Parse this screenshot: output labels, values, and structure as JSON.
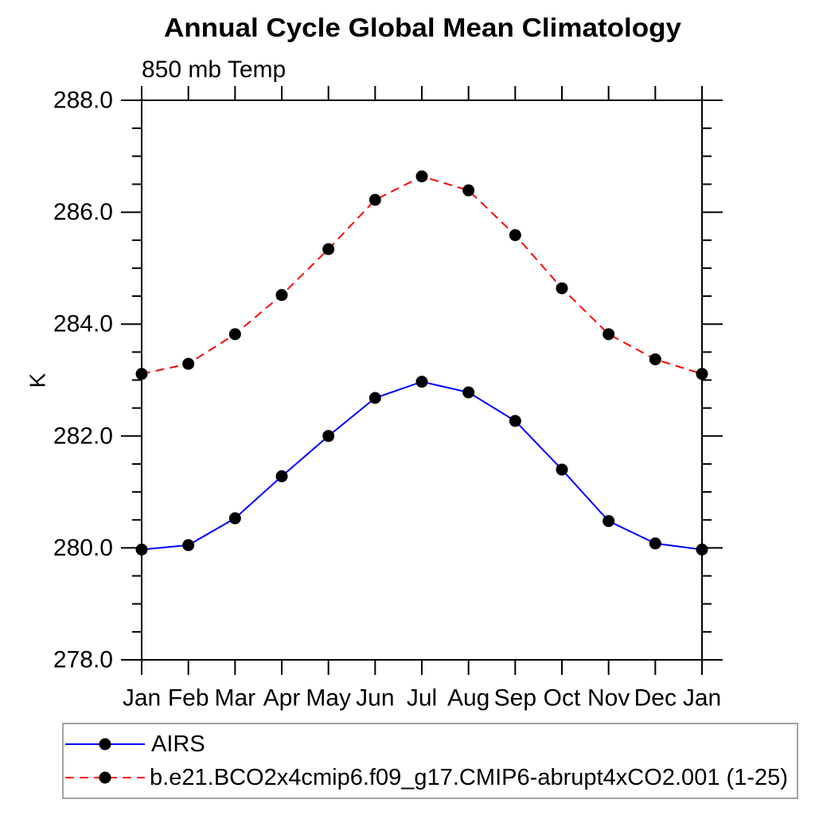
{
  "chart_data": {
    "type": "line",
    "title": "Annual Cycle Global Mean Climatology",
    "subtitle": "850 mb Temp",
    "ylabel": "K",
    "x_categories": [
      "Jan",
      "Feb",
      "Mar",
      "Apr",
      "May",
      "Jun",
      "Jul",
      "Aug",
      "Sep",
      "Oct",
      "Nov",
      "Dec",
      "Jan"
    ],
    "ylim": [
      278.0,
      288.0
    ],
    "y_major_tick_step": 2.0,
    "y_minor_tick_step": 0.5,
    "y_tick_decimals": 1,
    "grid": false,
    "frame_color": "#000000",
    "legend_position": "bottom-left-box",
    "legend_border_color": "#848484",
    "marker": "filled-circle",
    "marker_color": "#000000",
    "series": [
      {
        "name": "AIRS",
        "color": "#0000ff",
        "line_style": "solid",
        "values": [
          279.97,
          280.05,
          280.53,
          281.28,
          282.0,
          282.68,
          282.97,
          282.78,
          282.27,
          281.4,
          280.48,
          280.08,
          279.97
        ]
      },
      {
        "name": "b.e21.BCO2x4cmip6.f09_g17.CMIP6-abrupt4xCO2.001 (1-25)",
        "color": "#ff0000",
        "line_style": "dashed",
        "values": [
          283.11,
          283.29,
          283.82,
          284.52,
          285.34,
          286.22,
          286.64,
          286.39,
          285.59,
          284.64,
          283.82,
          283.37,
          283.11
        ]
      }
    ]
  }
}
